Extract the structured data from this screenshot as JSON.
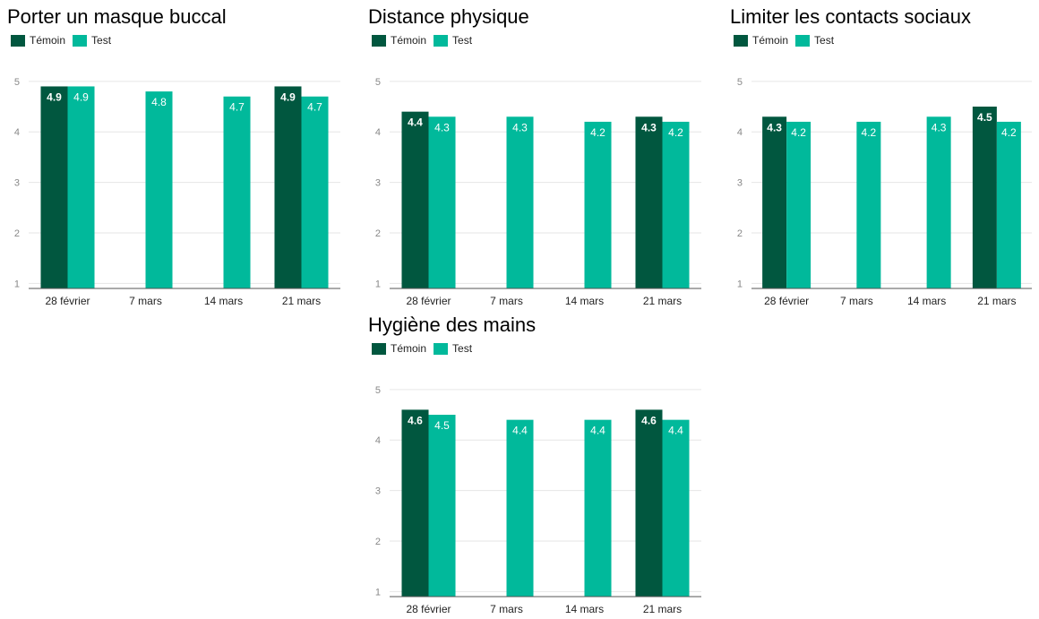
{
  "colors": {
    "temoin": "#01573f",
    "test": "#01b99b"
  },
  "legend": {
    "temoin": "Témoin",
    "test": "Test"
  },
  "chart_data": [
    {
      "type": "bar",
      "title": "Porter un masque buccal",
      "categories": [
        "28 février",
        "7 mars",
        "14 mars",
        "21 mars"
      ],
      "series": [
        {
          "name": "Témoin",
          "values": [
            4.9,
            null,
            null,
            4.9
          ]
        },
        {
          "name": "Test",
          "values": [
            4.9,
            4.8,
            4.7,
            4.7
          ]
        }
      ],
      "ylim": [
        0.9,
        5.05
      ],
      "yticks": [
        1,
        2,
        3,
        4,
        5
      ],
      "grid": true,
      "legend_position": "top-left"
    },
    {
      "type": "bar",
      "title": "Distance physique",
      "categories": [
        "28 février",
        "7 mars",
        "14 mars",
        "21 mars"
      ],
      "series": [
        {
          "name": "Témoin",
          "values": [
            4.4,
            null,
            null,
            4.3
          ]
        },
        {
          "name": "Test",
          "values": [
            4.3,
            4.3,
            4.2,
            4.2
          ]
        }
      ],
      "ylim": [
        0.9,
        5.05
      ],
      "yticks": [
        1,
        2,
        3,
        4,
        5
      ],
      "grid": true,
      "legend_position": "top-left"
    },
    {
      "type": "bar",
      "title": "Limiter les contacts sociaux",
      "categories": [
        "28 février",
        "7 mars",
        "14 mars",
        "21 mars"
      ],
      "series": [
        {
          "name": "Témoin",
          "values": [
            4.3,
            null,
            null,
            4.5
          ]
        },
        {
          "name": "Test",
          "values": [
            4.2,
            4.2,
            4.3,
            4.2
          ]
        }
      ],
      "ylim": [
        0.9,
        5.05
      ],
      "yticks": [
        1,
        2,
        3,
        4,
        5
      ],
      "grid": true,
      "legend_position": "top-left"
    },
    {
      "type": "bar",
      "title": "Hygiène des mains",
      "categories": [
        "28 février",
        "7 mars",
        "14 mars",
        "21 mars"
      ],
      "series": [
        {
          "name": "Témoin",
          "values": [
            4.6,
            null,
            null,
            4.6
          ]
        },
        {
          "name": "Test",
          "values": [
            4.5,
            4.4,
            4.4,
            4.4
          ]
        }
      ],
      "ylim": [
        0.9,
        5.05
      ],
      "yticks": [
        1,
        2,
        3,
        4,
        5
      ],
      "grid": true,
      "legend_position": "top-left"
    }
  ]
}
